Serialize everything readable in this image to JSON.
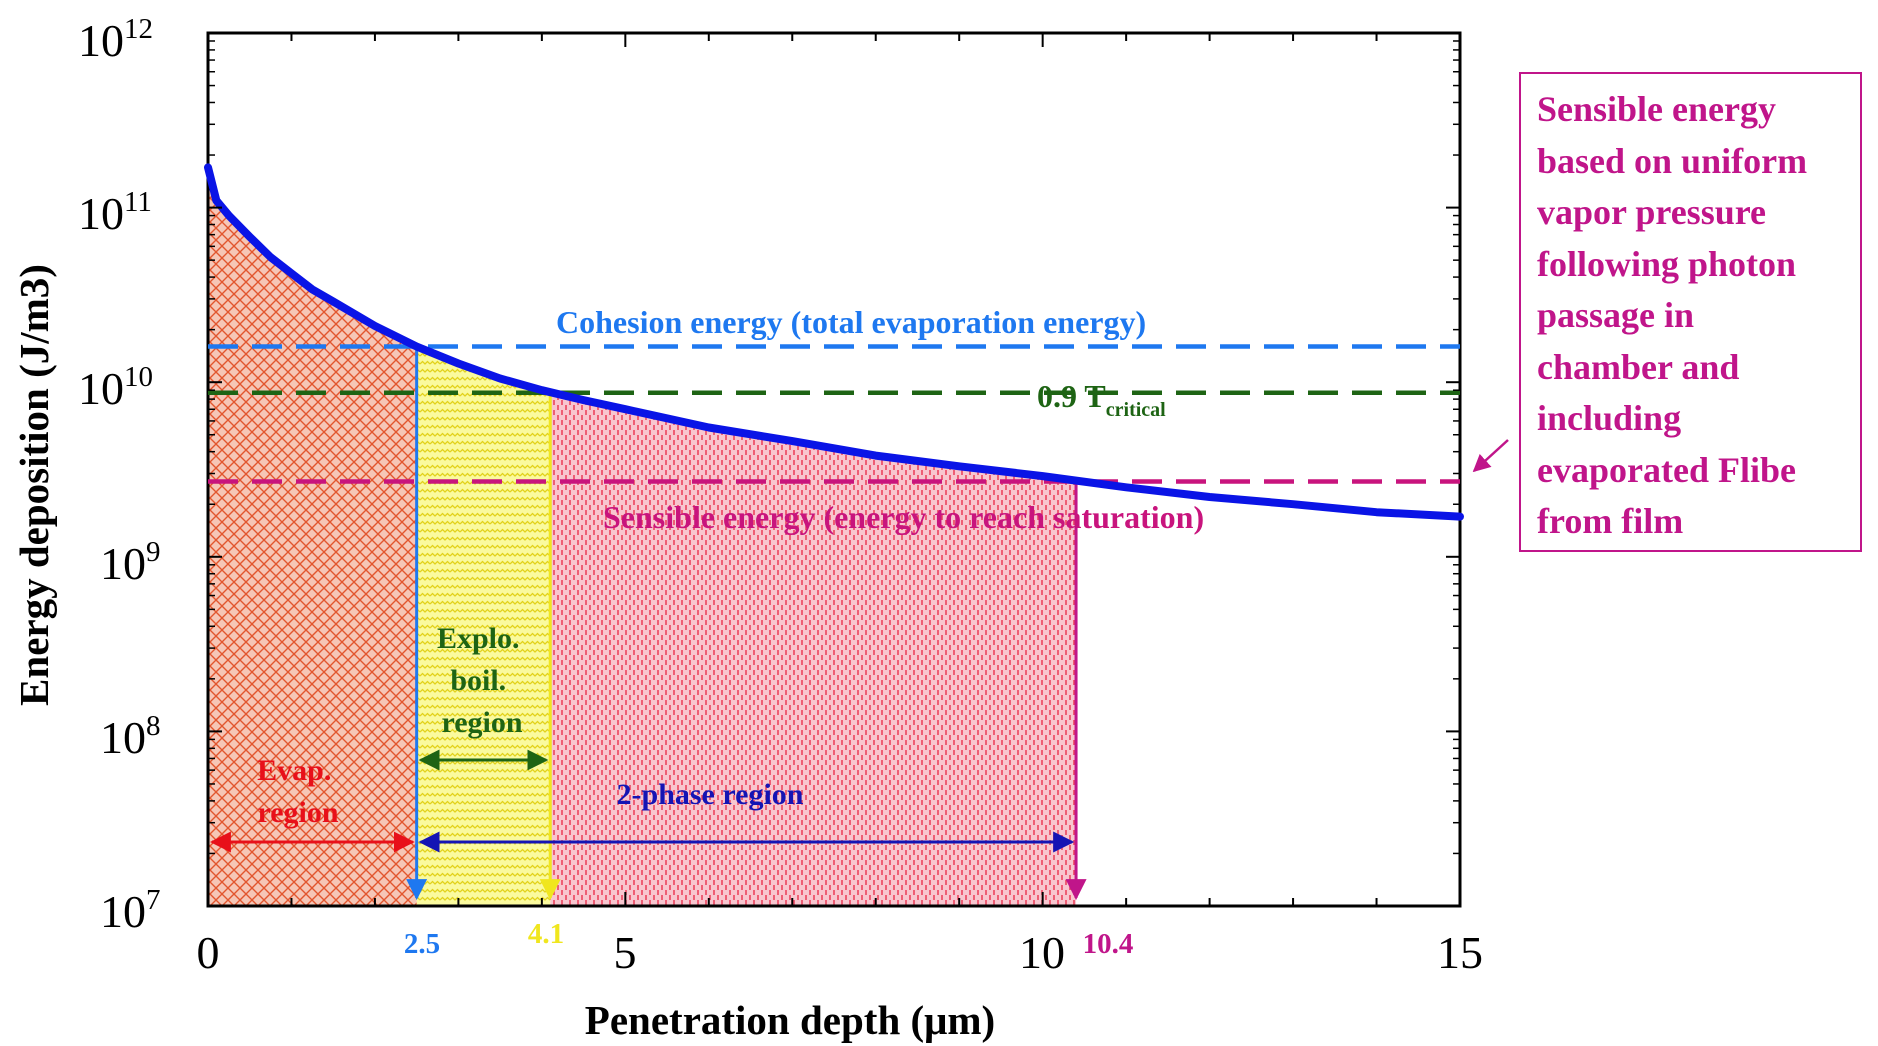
{
  "chart_data": {
    "type": "line",
    "xlabel": "Penetration depth (μm)",
    "ylabel": "Energy deposition (J/m3)",
    "xlim": [
      0,
      15
    ],
    "ylim": [
      10000000,
      1000000000000
    ],
    "yscale": "log",
    "x_ticks": [
      "0",
      "5",
      "10",
      "15"
    ],
    "y_tick_base": "10",
    "y_tick_exponents": [
      "7",
      "8",
      "9",
      "10",
      "11",
      "12"
    ],
    "series": [
      {
        "color": "#0a14e6",
        "x": [
          0,
          0.1,
          0.25,
          0.5,
          0.75,
          1,
          1.25,
          1.5,
          2,
          2.5,
          3,
          3.5,
          4,
          4.5,
          5,
          6,
          7,
          8,
          9,
          10,
          11,
          12,
          13,
          14,
          15
        ],
        "y": [
          170000000000,
          110000000000,
          90000000000,
          68000000000,
          52000000000,
          42000000000,
          34000000000,
          29000000000,
          21000000000,
          16000000000,
          12800000000,
          10500000000,
          9000000000,
          7900000000,
          7000000000,
          5500000000,
          4600000000,
          3800000000,
          3300000000,
          2900000000,
          2500000000,
          2200000000,
          2000000000,
          1800000000,
          1700000000
        ]
      }
    ],
    "reference_lines": [
      {
        "label": "Cohesion energy (total evaporation energy)",
        "y": 16000000000,
        "color": "#1e78f0"
      },
      {
        "label_main": "0.9 T",
        "label_sub": "critical",
        "y": 8700000000,
        "color": "#1e6414"
      },
      {
        "label": "Sensible energy (energy to reach saturation)",
        "y": 2700000000,
        "color": "#c8147d"
      }
    ],
    "markers": [
      {
        "label": "2.5",
        "x": 2.5,
        "color": "#1e78f0"
      },
      {
        "label": "4.1",
        "x": 4.1,
        "color": "#f0e61e"
      },
      {
        "label": "10.4",
        "x": 10.4,
        "color": "#c0158a"
      }
    ],
    "regions": [
      {
        "lines": [
          "Evap.",
          "region"
        ],
        "x_from": 0,
        "x_to": 2.5,
        "color": "#e8101a"
      },
      {
        "lines": [
          "Explo.",
          "boil.",
          "region"
        ],
        "x_from": 2.5,
        "x_to": 4.1,
        "color": "#1e6414"
      },
      {
        "lines": [
          "2-phase region"
        ],
        "x_from": 2.5,
        "x_to": 10.4,
        "color": "#1414b4"
      }
    ],
    "side_note": {
      "lines": [
        "Sensible energy",
        "based on uniform",
        "vapor pressure",
        "following photon",
        "passage in",
        "chamber and",
        "including",
        "evaporated Flibe",
        "from film"
      ],
      "color": "#c0158a"
    },
    "grid": false,
    "legend": "none"
  }
}
